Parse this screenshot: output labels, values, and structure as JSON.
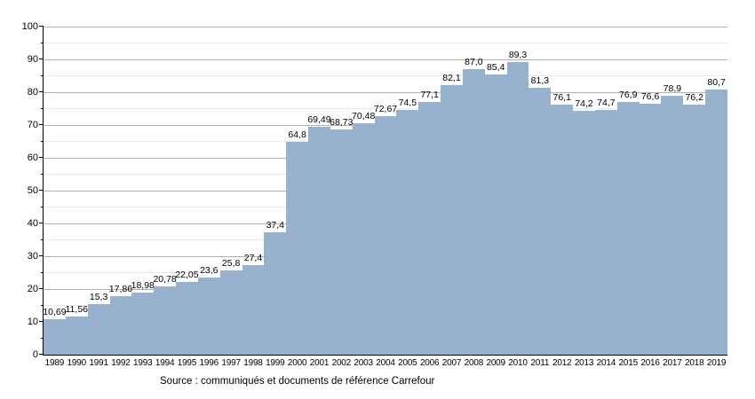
{
  "chart_data": {
    "type": "bar",
    "title": "",
    "categories": [
      "1989",
      "1990",
      "1991",
      "1992",
      "1993",
      "1994",
      "1995",
      "1996",
      "1997",
      "1998",
      "1999",
      "2000",
      "2001",
      "2002",
      "2003",
      "2004",
      "2005",
      "2006",
      "2007",
      "2008",
      "2009",
      "2010",
      "2011",
      "2012",
      "2013",
      "2014",
      "2015",
      "2016",
      "2017",
      "2018",
      "2019"
    ],
    "values": [
      10.69,
      11.56,
      15.3,
      17.86,
      18.98,
      20.78,
      22.05,
      23.6,
      25.8,
      27.4,
      37.4,
      64.8,
      69.49,
      68.73,
      70.48,
      72.67,
      74.5,
      77.1,
      82.1,
      87.0,
      85.4,
      89.3,
      81.3,
      76.1,
      74.2,
      74.7,
      76.9,
      76.6,
      78.9,
      76.2,
      80.7
    ],
    "value_labels": [
      "10,69",
      "11,56",
      "15,3",
      "17,86",
      "18,98",
      "20,78",
      "22,05",
      "23,6",
      "25,8",
      "27,4",
      "37,4",
      "64,8",
      "69,49",
      "68,73",
      "70,48",
      "72,67",
      "74,5",
      "77,1",
      "82,1",
      "87,0",
      "85,4",
      "89,3",
      "81,3",
      "76,1",
      "74,2",
      "74,7",
      "76,9",
      "76,6",
      "78,9",
      "76,2",
      "80,7"
    ],
    "xlabel": "",
    "ylabel": "",
    "ylim": [
      0,
      100
    ],
    "y_major_ticks": [
      0,
      10,
      20,
      30,
      40,
      50,
      60,
      70,
      80,
      90,
      100
    ],
    "y_minor_step": 5,
    "grid": "on",
    "legend": "none",
    "source": "Source : communiqués et documents de référence Carrefour",
    "colors": {
      "bar": "#98b2cd",
      "major_grid": "#b0b0b0",
      "minor_grid": "#e9e9e9",
      "axis": "#000000",
      "text": "#000000",
      "background": "#ffffff"
    }
  }
}
